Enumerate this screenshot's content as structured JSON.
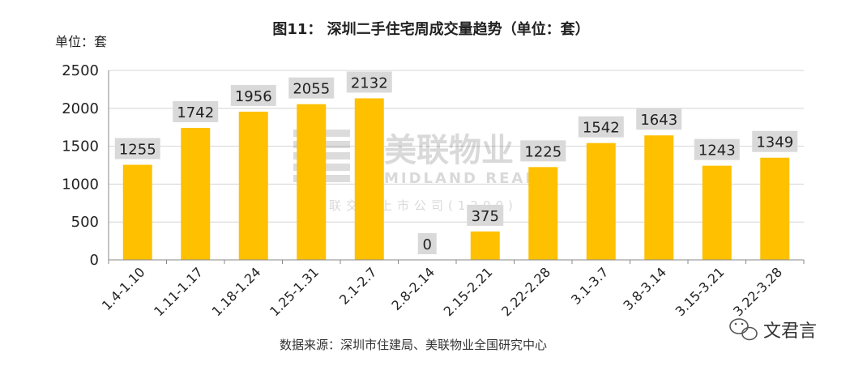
{
  "chart_data": {
    "type": "bar",
    "title": "图11： 深圳二手住宅周成交量趋势（单位：套）",
    "unit_label": "单位：套",
    "categories": [
      "1.4-1.10",
      "1.11-1.17",
      "1.18-1.24",
      "1.25-1.31",
      "2.1-2.7",
      "2.8-2.14",
      "2.15-2.21",
      "2.22-2.28",
      "3.1-3.7",
      "3.8-3.14",
      "3.15-3.21",
      "3.22-3.28"
    ],
    "values": [
      1255,
      1742,
      1956,
      2055,
      2132,
      0,
      375,
      1225,
      1542,
      1643,
      1243,
      1349
    ],
    "ylim": [
      0,
      2500
    ],
    "yticks": [
      0,
      500,
      1000,
      1500,
      2000,
      2500
    ],
    "grid": true,
    "bar_color": "#FFC000",
    "grid_color": "#d4d4d4",
    "label_bg_color": "#d9d9d9",
    "source": "数据来源：深圳市住建局、美联物业全国研究中心"
  },
  "watermark": {
    "name": "美联物业",
    "english": "MIDLAND REALTY",
    "subtitle": "联交所上市公司(1200)"
  },
  "brand": {
    "name": "文君言",
    "icon": "wechat-icon"
  }
}
